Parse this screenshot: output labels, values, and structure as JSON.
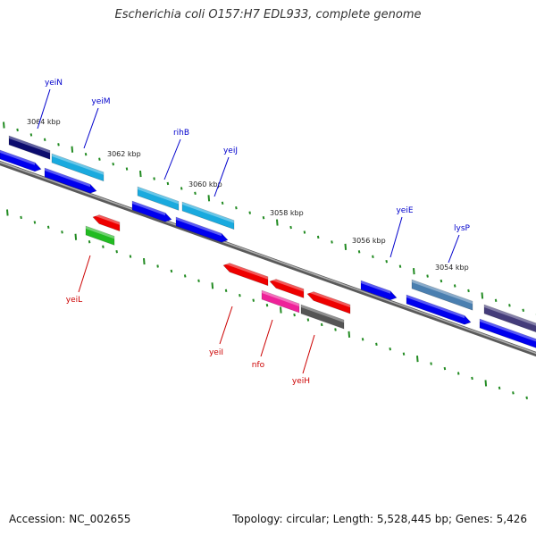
{
  "title": "Escherichia coli O157:H7 EDL933, complete genome",
  "footer": {
    "accession": "Accession: NC_002655",
    "summary": "Topology: circular; Length: 5,528,445 bp; Genes: 5,426"
  },
  "colors": {
    "backbone": "#808080",
    "ticks": "#228B22",
    "forward_label": "#0000CC",
    "reverse_label": "#CC0000",
    "scale_label": "#222222"
  },
  "scale_labels": [
    "3064 kbp",
    "3062 kbp",
    "3060 kbp",
    "3058 kbp",
    "3056 kbp",
    "3054 kbp"
  ],
  "genes": [
    {
      "name": "yeiN",
      "strand": "forward"
    },
    {
      "name": "yeiM",
      "strand": "forward"
    },
    {
      "name": "rihB",
      "strand": "forward"
    },
    {
      "name": "yeiJ",
      "strand": "forward"
    },
    {
      "name": "yeiE",
      "strand": "forward"
    },
    {
      "name": "lysP",
      "strand": "forward"
    },
    {
      "name": "yeiL",
      "strand": "reverse"
    },
    {
      "name": "yeiI",
      "strand": "reverse"
    },
    {
      "name": "nfo",
      "strand": "reverse"
    },
    {
      "name": "yeiH",
      "strand": "reverse"
    }
  ]
}
